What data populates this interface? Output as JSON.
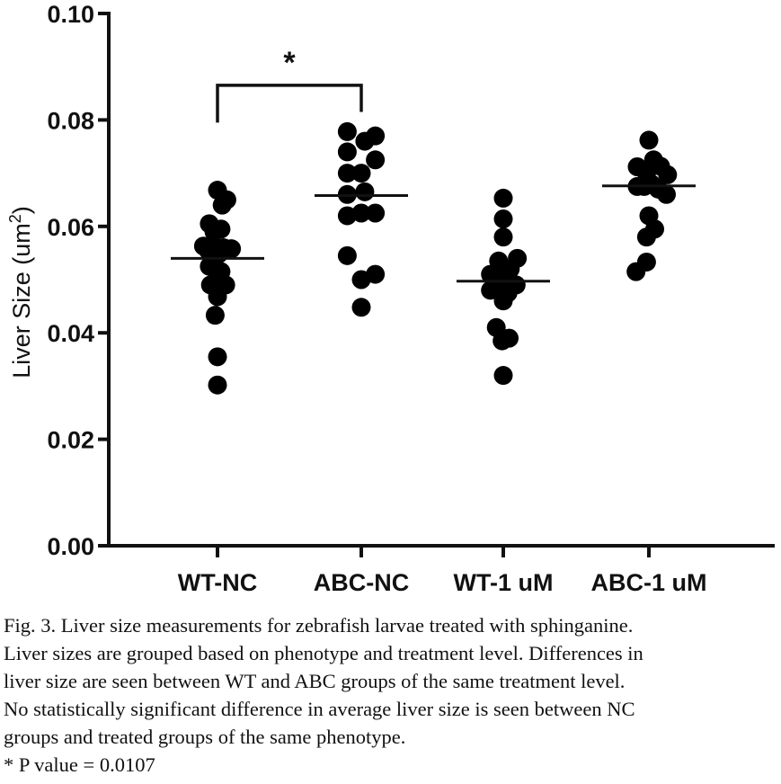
{
  "chart_data": {
    "type": "scatter",
    "ylabel": "Liver Size (um",
    "ylabel_sup": "2",
    "ylabel_close": ")",
    "xlabel": "",
    "ylim": [
      0.0,
      0.1
    ],
    "yticks": [
      "0.00",
      "0.02",
      "0.04",
      "0.06",
      "0.08",
      "0.10"
    ],
    "categories": [
      "WT-NC",
      "ABC-NC",
      "WT-1 uM",
      "ABC-1 uM"
    ],
    "groups": [
      {
        "name": "WT-NC",
        "median": 0.054,
        "points": [
          {
            "x": 0,
            "y": 0.0668
          },
          {
            "x": 0.2,
            "y": 0.064
          },
          {
            "x": 0.4,
            "y": 0.065
          },
          {
            "x": -0.35,
            "y": 0.0605
          },
          {
            "x": -0.15,
            "y": 0.059
          },
          {
            "x": 0.15,
            "y": 0.0595
          },
          {
            "x": -0.6,
            "y": 0.0563
          },
          {
            "x": -0.4,
            "y": 0.0555
          },
          {
            "x": -0.2,
            "y": 0.056
          },
          {
            "x": 0.05,
            "y": 0.0548
          },
          {
            "x": 0.25,
            "y": 0.056
          },
          {
            "x": 0.6,
            "y": 0.0558
          },
          {
            "x": -0.35,
            "y": 0.0525
          },
          {
            "x": -0.1,
            "y": 0.052
          },
          {
            "x": 0.15,
            "y": 0.0515
          },
          {
            "x": -0.3,
            "y": 0.049
          },
          {
            "x": 0.35,
            "y": 0.049
          },
          {
            "x": 0,
            "y": 0.0468
          },
          {
            "x": -0.1,
            "y": 0.0433
          },
          {
            "x": 0,
            "y": 0.0355
          },
          {
            "x": 0,
            "y": 0.0302
          }
        ]
      },
      {
        "name": "ABC-NC",
        "median": 0.0658,
        "points": [
          {
            "x": -0.6,
            "y": 0.0778
          },
          {
            "x": 0.15,
            "y": 0.076
          },
          {
            "x": 0.6,
            "y": 0.077
          },
          {
            "x": -0.6,
            "y": 0.074
          },
          {
            "x": 0.6,
            "y": 0.0725
          },
          {
            "x": -0.6,
            "y": 0.07
          },
          {
            "x": 0,
            "y": 0.07
          },
          {
            "x": -0.6,
            "y": 0.066
          },
          {
            "x": 0.15,
            "y": 0.0665
          },
          {
            "x": -0.6,
            "y": 0.062
          },
          {
            "x": 0,
            "y": 0.0625
          },
          {
            "x": 0.6,
            "y": 0.0625
          },
          {
            "x": -0.6,
            "y": 0.0545
          },
          {
            "x": 0.6,
            "y": 0.051
          },
          {
            "x": 0,
            "y": 0.05
          },
          {
            "x": 0,
            "y": 0.0448
          }
        ]
      },
      {
        "name": "WT-1 uM",
        "median": 0.0497,
        "points": [
          {
            "x": 0,
            "y": 0.0653
          },
          {
            "x": 0,
            "y": 0.0614
          },
          {
            "x": 0,
            "y": 0.058
          },
          {
            "x": -0.2,
            "y": 0.0535
          },
          {
            "x": 0.6,
            "y": 0.054
          },
          {
            "x": 0.3,
            "y": 0.052
          },
          {
            "x": -0.55,
            "y": 0.051
          },
          {
            "x": -0.2,
            "y": 0.051
          },
          {
            "x": 0,
            "y": 0.0517
          },
          {
            "x": -0.55,
            "y": 0.048
          },
          {
            "x": -0.15,
            "y": 0.0495
          },
          {
            "x": 0.15,
            "y": 0.049
          },
          {
            "x": 0.55,
            "y": 0.049
          },
          {
            "x": 0.2,
            "y": 0.0475
          },
          {
            "x": 0,
            "y": 0.046
          },
          {
            "x": -0.3,
            "y": 0.041
          },
          {
            "x": -0.05,
            "y": 0.0385
          },
          {
            "x": 0.25,
            "y": 0.039
          },
          {
            "x": 0,
            "y": 0.032
          }
        ]
      },
      {
        "name": "ABC-1 uM",
        "median": 0.0676,
        "points": [
          {
            "x": 0,
            "y": 0.0762
          },
          {
            "x": -0.5,
            "y": 0.0712
          },
          {
            "x": 0.2,
            "y": 0.0725
          },
          {
            "x": 0.5,
            "y": 0.0713
          },
          {
            "x": -0.1,
            "y": 0.07
          },
          {
            "x": 0.8,
            "y": 0.0697
          },
          {
            "x": -0.5,
            "y": 0.0675
          },
          {
            "x": -0.2,
            "y": 0.0675
          },
          {
            "x": 0.1,
            "y": 0.068
          },
          {
            "x": 0.4,
            "y": 0.067
          },
          {
            "x": 0.75,
            "y": 0.066
          },
          {
            "x": 0,
            "y": 0.062
          },
          {
            "x": -0.1,
            "y": 0.058
          },
          {
            "x": 0.25,
            "y": 0.0595
          },
          {
            "x": -0.1,
            "y": 0.0533
          },
          {
            "x": -0.55,
            "y": 0.0515
          }
        ]
      }
    ],
    "significance": {
      "from": 0,
      "to": 1,
      "y": 0.0865,
      "label": "*"
    }
  },
  "caption": {
    "lines": [
      "Fig. 3. Liver size measurements for zebrafish larvae treated with sphinganine.",
      "Liver sizes are grouped based on phenotype and treatment level. Differences in",
      "liver size are seen between WT and ABC groups of the same treatment level.",
      "No statistically significant difference in average liver size is seen between NC",
      "groups and treated groups of the same phenotype.",
      "* P value = 0.0107"
    ]
  }
}
